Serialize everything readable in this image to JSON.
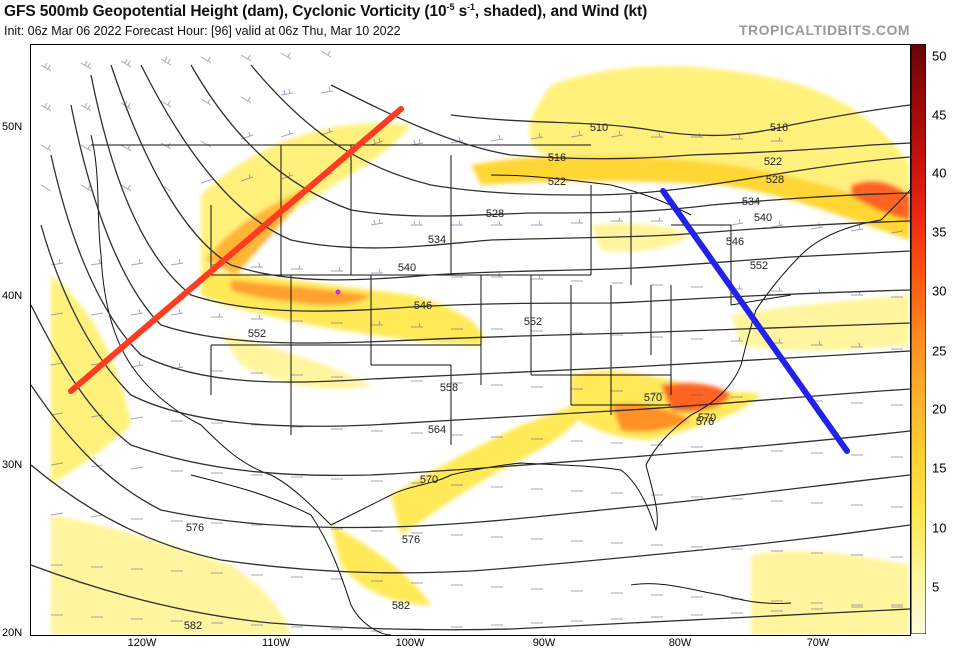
{
  "header": {
    "title_main": "GFS 500mb Geopotential Height (dam), Cyclonic Vorticity (10",
    "title_sup1": "-5",
    "title_mid": " s",
    "title_sup2": "-1",
    "title_end": ", shaded), and Wind (kt)",
    "subtitle": "Init: 06z Mar 06 2022   Forecast Hour: [96]   valid at 06z Thu, Mar 10 2022",
    "brand": "TROPICALTIDBITS.COM"
  },
  "latitude_labels": [
    "50N",
    "40N",
    "30N",
    "20N"
  ],
  "longitude_labels": [
    "120W",
    "110W",
    "100W",
    "90W",
    "80W",
    "70W"
  ],
  "colorbar": {
    "ticks": [
      "5",
      "10",
      "15",
      "20",
      "25",
      "30",
      "35",
      "40",
      "45",
      "50"
    ],
    "colors": [
      "#fffde0",
      "#fff59a",
      "#ffe84f",
      "#ffd030",
      "#ffb12a",
      "#ff8c1f",
      "#ff5a14",
      "#ee2a10",
      "#c8120c",
      "#9a0a0a",
      "#6b0404"
    ]
  },
  "contour_labels": [
    {
      "text": "510"
    },
    {
      "text": "516"
    },
    {
      "text": "516"
    },
    {
      "text": "522"
    },
    {
      "text": "522"
    },
    {
      "text": "528"
    },
    {
      "text": "528"
    },
    {
      "text": "534"
    },
    {
      "text": "534"
    },
    {
      "text": "540"
    },
    {
      "text": "540"
    },
    {
      "text": "546"
    },
    {
      "text": "546"
    },
    {
      "text": "552"
    },
    {
      "text": "552"
    },
    {
      "text": "552"
    },
    {
      "text": "558"
    },
    {
      "text": "564"
    },
    {
      "text": "570"
    },
    {
      "text": "570"
    },
    {
      "text": "570"
    },
    {
      "text": "576"
    },
    {
      "text": "576"
    },
    {
      "text": "576"
    },
    {
      "text": "582"
    },
    {
      "text": "582"
    }
  ],
  "annotations": {
    "red_line_color": "#ff3b22",
    "blue_line_color": "#2222e8"
  }
}
